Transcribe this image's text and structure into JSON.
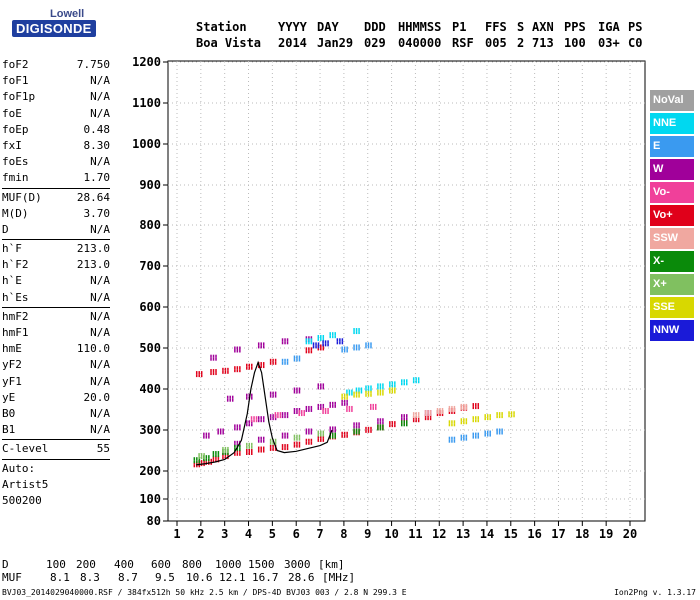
{
  "logo": {
    "line1": "Lowell",
    "line2": "DIGISONDE"
  },
  "header": {
    "labels": [
      "Station",
      "YYYY",
      "DAY",
      "DDD",
      "HHMMSS",
      "P1",
      "FFS",
      "S",
      "AXN",
      "PPS",
      "IGA",
      "PS"
    ],
    "values": [
      "Boa Vista",
      "2014",
      "Jan29",
      "029",
      "040000",
      "RSF",
      "005",
      "2",
      "713",
      "100",
      "03+",
      "C0"
    ]
  },
  "params": [
    {
      "name": "foF2",
      "value": "7.750"
    },
    {
      "name": "foF1",
      "value": "N/A"
    },
    {
      "name": "foF1p",
      "value": "N/A"
    },
    {
      "name": "foE",
      "value": "N/A"
    },
    {
      "name": "foEp",
      "value": "0.48"
    },
    {
      "name": "fxI",
      "value": "8.30"
    },
    {
      "name": "foEs",
      "value": "N/A"
    },
    {
      "name": "fmin",
      "value": "1.70"
    },
    {
      "sep": true
    },
    {
      "name": "MUF(D)",
      "value": "28.64"
    },
    {
      "name": "M(D)",
      "value": "3.70"
    },
    {
      "name": "D",
      "value": "N/A"
    },
    {
      "sep": true
    },
    {
      "name": "h`F",
      "value": "213.0"
    },
    {
      "name": "h`F2",
      "value": "213.0"
    },
    {
      "name": "h`E",
      "value": "N/A"
    },
    {
      "name": "h`Es",
      "value": "N/A"
    },
    {
      "sep": true
    },
    {
      "name": "hmF2",
      "value": "N/A"
    },
    {
      "name": "hmF1",
      "value": "N/A"
    },
    {
      "name": "hmE",
      "value": "110.0"
    },
    {
      "name": "yF2",
      "value": "N/A"
    },
    {
      "name": "yF1",
      "value": "N/A"
    },
    {
      "name": "yE",
      "value": "20.0"
    },
    {
      "name": "B0",
      "value": "N/A"
    },
    {
      "name": "B1",
      "value": "N/A"
    },
    {
      "sep": true
    },
    {
      "name": "C-level",
      "value": "55"
    },
    {
      "sep": true
    },
    {
      "text": "Auto:"
    },
    {
      "text": "Artist5"
    },
    {
      "text": "500200"
    }
  ],
  "legend": [
    {
      "label": "NoVal",
      "color": "#a0a0a0"
    },
    {
      "label": "NNE",
      "color": "#00d8f0"
    },
    {
      "label": "E",
      "color": "#3a9af0"
    },
    {
      "label": "W",
      "color": "#a0009a"
    },
    {
      "label": "Vo-",
      "color": "#f0409a"
    },
    {
      "label": "Vo+",
      "color": "#e0001a"
    },
    {
      "label": "SSW",
      "color": "#f0a8a0"
    },
    {
      "label": "X-",
      "color": "#0a8a0a"
    },
    {
      "label": "X+",
      "color": "#80c060"
    },
    {
      "label": "SSE",
      "color": "#d8d800"
    },
    {
      "label": "NNW",
      "color": "#1a1ad8"
    }
  ],
  "chart_data": {
    "type": "scatter",
    "xlim": [
      1,
      20
    ],
    "ylim": [
      80,
      1200
    ],
    "xticks": [
      "1",
      "2",
      "3",
      "4",
      "5",
      "6",
      "7",
      "8",
      "9",
      "10",
      "11",
      "12",
      "13",
      "14",
      "15",
      "16",
      "17",
      "18",
      "19",
      "20"
    ],
    "yticks": [
      "80",
      "100",
      "200",
      "300",
      "400",
      "500",
      "600",
      "700",
      "800",
      "900",
      "1000",
      "1100",
      "1200"
    ],
    "grid": true,
    "series": [
      {
        "name": "Vo+",
        "color": "#e0001a",
        "points": [
          [
            1.8,
            220
          ],
          [
            2.0,
            223
          ],
          [
            2.3,
            226
          ],
          [
            2.6,
            232
          ],
          [
            3.0,
            240
          ],
          [
            3.5,
            248
          ],
          [
            4.0,
            250
          ],
          [
            4.5,
            256
          ],
          [
            5.0,
            260
          ],
          [
            5.5,
            262
          ],
          [
            6.0,
            268
          ],
          [
            6.5,
            275
          ],
          [
            7.0,
            282
          ],
          [
            7.5,
            288
          ],
          [
            8.0,
            292
          ],
          [
            8.5,
            298
          ],
          [
            9.0,
            304
          ],
          [
            9.5,
            310
          ],
          [
            10.0,
            318
          ],
          [
            10.5,
            322
          ],
          [
            11.0,
            330
          ],
          [
            11.5,
            335
          ],
          [
            12.0,
            345
          ],
          [
            12.5,
            350
          ],
          [
            13.0,
            358
          ],
          [
            13.5,
            362
          ],
          [
            1.9,
            440
          ],
          [
            2.5,
            445
          ],
          [
            3.0,
            448
          ],
          [
            3.5,
            452
          ],
          [
            4.0,
            458
          ],
          [
            4.5,
            462
          ],
          [
            5.0,
            470
          ],
          [
            6.5,
            498
          ],
          [
            7.0,
            505
          ]
        ]
      },
      {
        "name": "W",
        "color": "#a0009a",
        "points": [
          [
            2.2,
            290
          ],
          [
            2.8,
            300
          ],
          [
            3.5,
            310
          ],
          [
            4.0,
            320
          ],
          [
            4.5,
            330
          ],
          [
            5.0,
            335
          ],
          [
            5.5,
            340
          ],
          [
            6.0,
            350
          ],
          [
            6.5,
            355
          ],
          [
            7.0,
            360
          ],
          [
            7.5,
            365
          ],
          [
            8.0,
            370
          ],
          [
            3.5,
            270
          ],
          [
            4.5,
            280
          ],
          [
            5.5,
            290
          ],
          [
            6.5,
            300
          ],
          [
            7.5,
            305
          ],
          [
            8.5,
            315
          ],
          [
            9.5,
            325
          ],
          [
            10.5,
            335
          ],
          [
            11.5,
            345
          ],
          [
            3.2,
            380
          ],
          [
            4.0,
            385
          ],
          [
            5.0,
            390
          ],
          [
            6.0,
            400
          ],
          [
            7.0,
            410
          ],
          [
            2.5,
            480
          ],
          [
            3.5,
            500
          ],
          [
            4.5,
            510
          ],
          [
            5.5,
            520
          ],
          [
            6.5,
            525
          ]
        ]
      },
      {
        "name": "NNE",
        "color": "#00d8f0",
        "points": [
          [
            8.2,
            395
          ],
          [
            8.6,
            400
          ],
          [
            9.0,
            405
          ],
          [
            9.5,
            410
          ],
          [
            10.0,
            415
          ],
          [
            10.5,
            420
          ],
          [
            11.0,
            425
          ],
          [
            6.5,
            520
          ],
          [
            7.0,
            528
          ],
          [
            7.5,
            535
          ],
          [
            8.5,
            545
          ]
        ]
      },
      {
        "name": "E",
        "color": "#3a9af0",
        "points": [
          [
            12.5,
            280
          ],
          [
            13.0,
            285
          ],
          [
            13.5,
            290
          ],
          [
            14.0,
            295
          ],
          [
            14.5,
            300
          ],
          [
            8.0,
            500
          ],
          [
            8.5,
            505
          ],
          [
            9.0,
            510
          ],
          [
            5.5,
            470
          ],
          [
            6.0,
            478
          ]
        ]
      },
      {
        "name": "SSE",
        "color": "#d8d800",
        "points": [
          [
            8.0,
            385
          ],
          [
            8.5,
            390
          ],
          [
            9.0,
            392
          ],
          [
            9.5,
            395
          ],
          [
            10.0,
            400
          ],
          [
            12.5,
            320
          ],
          [
            13.0,
            325
          ],
          [
            13.5,
            330
          ],
          [
            14.0,
            335
          ],
          [
            14.5,
            340
          ],
          [
            15.0,
            342
          ]
        ]
      },
      {
        "name": "X-",
        "color": "#0a8a0a",
        "points": [
          [
            1.8,
            230
          ],
          [
            2.2,
            235
          ],
          [
            2.6,
            245
          ],
          [
            3.0,
            250
          ],
          [
            3.5,
            260
          ],
          [
            7.5,
            290
          ],
          [
            8.5,
            300
          ],
          [
            9.5,
            310
          ],
          [
            10.5,
            320
          ]
        ]
      },
      {
        "name": "X+",
        "color": "#80c060",
        "points": [
          [
            2.0,
            240
          ],
          [
            3.0,
            255
          ],
          [
            4.0,
            265
          ],
          [
            5.0,
            275
          ],
          [
            6.0,
            285
          ],
          [
            7.0,
            295
          ]
        ]
      },
      {
        "name": "SSW",
        "color": "#f0a8a0",
        "points": [
          [
            11.0,
            340
          ],
          [
            11.5,
            345
          ],
          [
            12.0,
            350
          ],
          [
            12.5,
            355
          ],
          [
            13.0,
            360
          ]
        ]
      },
      {
        "name": "NNW",
        "color": "#1a1ad8",
        "points": [
          [
            6.8,
            510
          ],
          [
            7.2,
            515
          ],
          [
            7.8,
            520
          ]
        ]
      },
      {
        "name": "Vo-",
        "color": "#f0409a",
        "points": [
          [
            4.2,
            330
          ],
          [
            5.2,
            340
          ],
          [
            6.2,
            345
          ],
          [
            7.2,
            350
          ],
          [
            8.2,
            355
          ],
          [
            9.2,
            360
          ]
        ]
      }
    ],
    "trace": [
      [
        1.8,
        215
      ],
      [
        2.2,
        218
      ],
      [
        2.6,
        222
      ],
      [
        3.0,
        228
      ],
      [
        3.4,
        245
      ],
      [
        3.7,
        275
      ],
      [
        3.95,
        340
      ],
      [
        4.1,
        400
      ],
      [
        4.25,
        440
      ],
      [
        4.4,
        465
      ],
      [
        4.55,
        440
      ],
      [
        4.7,
        380
      ],
      [
        4.85,
        320
      ],
      [
        5.0,
        280
      ],
      [
        5.2,
        250
      ],
      [
        5.5,
        245
      ],
      [
        6.0,
        248
      ],
      [
        6.5,
        255
      ],
      [
        7.0,
        262
      ],
      [
        7.3,
        270
      ],
      [
        7.5,
        300
      ]
    ]
  },
  "footer": {
    "d_label": "D",
    "d_values": [
      "100",
      "200",
      "400",
      "600",
      "800",
      "1000",
      "1500",
      "3000",
      "[km]"
    ],
    "muf_label": "MUF",
    "muf_values": [
      "8.1",
      "8.3",
      "8.7",
      "9.5",
      "10.6",
      "12.1",
      "16.7",
      "28.6",
      "[MHz]"
    ],
    "info": "BVJ03_2014029040000.RSF / 384fx512h 50 kHz 2.5 km / DPS-4D BVJ03 003 / 2.8 N 299.3 E",
    "version": "Ion2Png v. 1.3.17"
  }
}
